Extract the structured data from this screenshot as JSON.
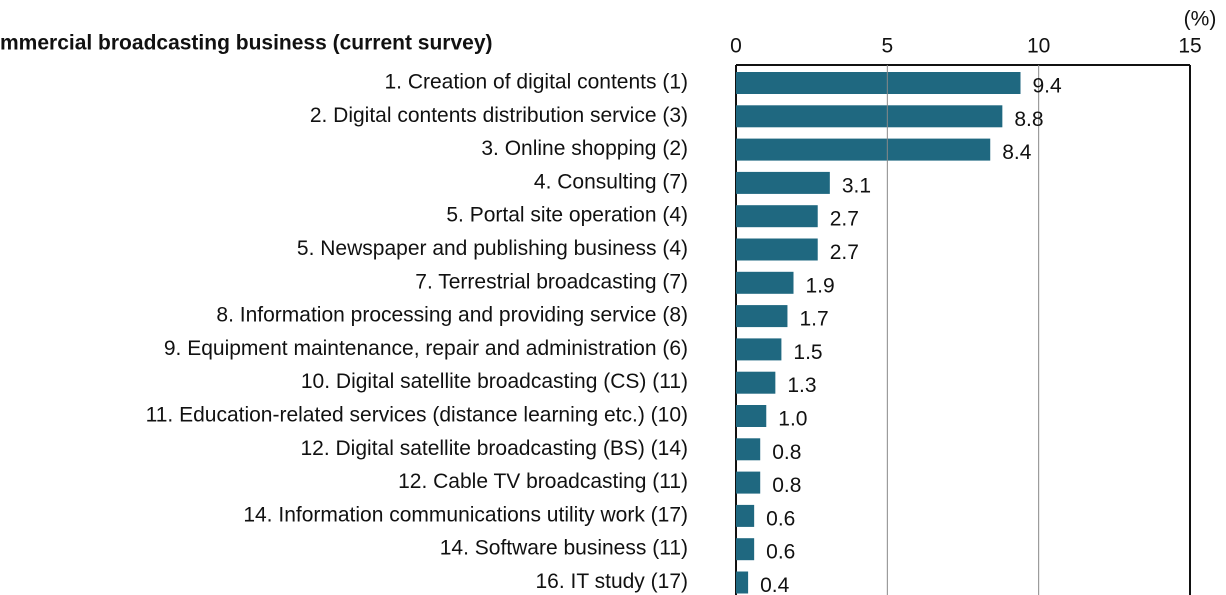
{
  "chart_data": {
    "type": "hbar",
    "title": "mmercial broadcasting business (current survey)",
    "x_label": "(%)",
    "categories": [
      "1. Creation of digital contents (1)",
      "2. Digital contents distribution service (3)",
      "3. Online shopping (2)",
      "4. Consulting (7)",
      "5. Portal site operation (4)",
      "5. Newspaper and publishing business (4)",
      "7. Terrestrial broadcasting (7)",
      "8. Information processing and providing service (8)",
      "9. Equipment maintenance, repair and administration (6)",
      "10. Digital satellite broadcasting (CS) (11)",
      "11. Education-related services (distance learning etc.) (10)",
      "12. Digital satellite broadcasting (BS) (14)",
      "12. Cable TV broadcasting (11)",
      "14. Information communications utility work (17)",
      "14. Software business (11)",
      "16. IT study (17)"
    ],
    "values": [
      9.4,
      8.8,
      8.4,
      3.1,
      2.7,
      2.7,
      1.9,
      1.7,
      1.5,
      1.3,
      1.0,
      0.8,
      0.8,
      0.6,
      0.6,
      0.4
    ],
    "value_labels": [
      "9.4",
      "8.8",
      "8.4",
      "3.1",
      "2.7",
      "2.7",
      "1.9",
      "1.7",
      "1.5",
      "1.3",
      "1.0",
      "0.8",
      "0.8",
      "0.6",
      "0.6",
      "0.4"
    ],
    "color": "#1f6880",
    "xlim": [
      0,
      15
    ],
    "xticks": [
      0,
      5,
      10,
      15
    ],
    "grid": true
  }
}
